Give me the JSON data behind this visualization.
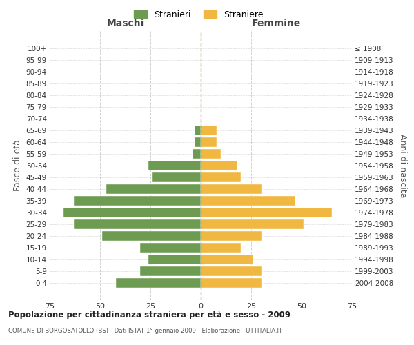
{
  "age_groups": [
    "0-4",
    "5-9",
    "10-14",
    "15-19",
    "20-24",
    "25-29",
    "30-34",
    "35-39",
    "40-44",
    "45-49",
    "50-54",
    "55-59",
    "60-64",
    "65-69",
    "70-74",
    "75-79",
    "80-84",
    "85-89",
    "90-94",
    "95-99",
    "100+"
  ],
  "birth_years": [
    "2004-2008",
    "1999-2003",
    "1994-1998",
    "1989-1993",
    "1984-1988",
    "1979-1983",
    "1974-1978",
    "1969-1973",
    "1964-1968",
    "1959-1963",
    "1954-1958",
    "1949-1953",
    "1944-1948",
    "1939-1943",
    "1934-1938",
    "1929-1933",
    "1924-1928",
    "1919-1923",
    "1914-1918",
    "1909-1913",
    "≤ 1908"
  ],
  "males": [
    42,
    30,
    26,
    30,
    49,
    63,
    68,
    63,
    47,
    24,
    26,
    4,
    3,
    3,
    0,
    0,
    0,
    0,
    0,
    0,
    0
  ],
  "females": [
    30,
    30,
    26,
    20,
    30,
    51,
    65,
    47,
    30,
    20,
    18,
    10,
    8,
    8,
    0,
    0,
    0,
    0,
    0,
    0,
    0
  ],
  "male_color": "#6e9b52",
  "female_color": "#f0b840",
  "background_color": "#ffffff",
  "grid_color": "#cccccc",
  "title": "Popolazione per cittadinanza straniera per età e sesso - 2009",
  "subtitle": "COMUNE DI BORGOSATOLLO (BS) - Dati ISTAT 1° gennaio 2009 - Elaborazione TUTTITALIA.IT",
  "xlabel_left": "Maschi",
  "xlabel_right": "Femmine",
  "ylabel_left": "Fasce di età",
  "ylabel_right": "Anni di nascita",
  "legend_male": "Stranieri",
  "legend_female": "Straniere",
  "xlim": 75,
  "center_line_color": "#999966"
}
